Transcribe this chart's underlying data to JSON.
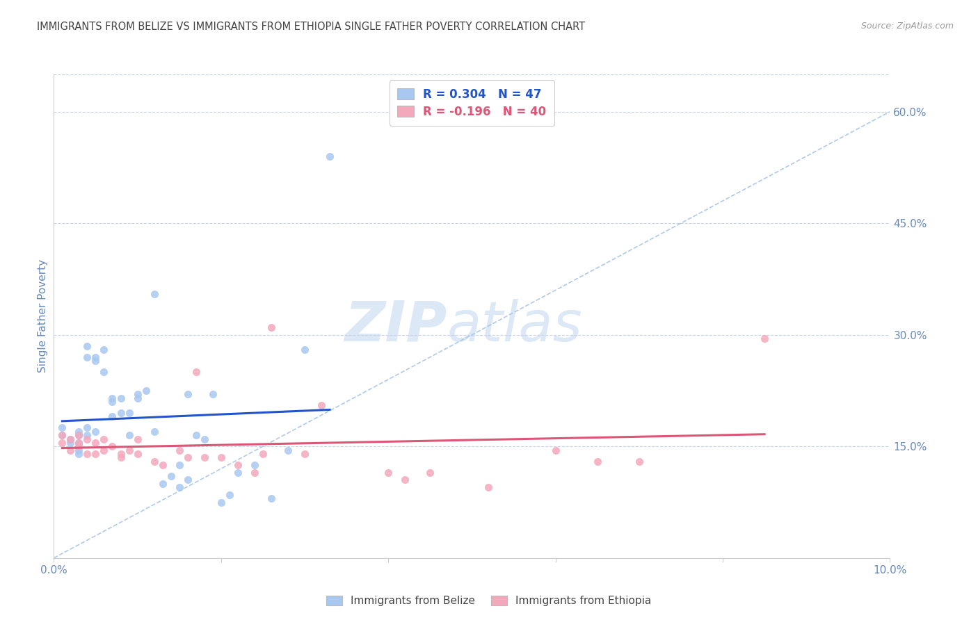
{
  "title": "IMMIGRANTS FROM BELIZE VS IMMIGRANTS FROM ETHIOPIA SINGLE FATHER POVERTY CORRELATION CHART",
  "source": "Source: ZipAtlas.com",
  "ylabel": "Single Father Poverty",
  "legend_belize": "Immigrants from Belize",
  "legend_ethiopia": "Immigrants from Ethiopia",
  "legend_r_belize": "0.304",
  "legend_n_belize": "47",
  "legend_r_ethiopia": "-0.196",
  "legend_n_ethiopia": "40",
  "xlim": [
    0.0,
    0.1
  ],
  "ylim": [
    0.0,
    0.65
  ],
  "yticks_right": [
    0.15,
    0.3,
    0.45,
    0.6
  ],
  "ytick_labels_right": [
    "15.0%",
    "30.0%",
    "45.0%",
    "60.0%"
  ],
  "color_belize": "#a8c8f0",
  "color_ethiopia": "#f4a8bc",
  "color_trend_belize": "#2255cc",
  "color_trend_ethiopia": "#dd5577",
  "color_diagonal": "#a8c4e8",
  "watermark_zip": "ZIP",
  "watermark_atlas": "atlas",
  "watermark_color": "#dce8f5",
  "belize_x": [
    0.001,
    0.001,
    0.002,
    0.002,
    0.003,
    0.003,
    0.003,
    0.003,
    0.003,
    0.004,
    0.004,
    0.004,
    0.004,
    0.005,
    0.005,
    0.005,
    0.006,
    0.006,
    0.007,
    0.007,
    0.007,
    0.008,
    0.008,
    0.009,
    0.009,
    0.01,
    0.01,
    0.011,
    0.012,
    0.012,
    0.013,
    0.014,
    0.015,
    0.015,
    0.016,
    0.016,
    0.017,
    0.018,
    0.019,
    0.02,
    0.021,
    0.022,
    0.024,
    0.026,
    0.028,
    0.03,
    0.033
  ],
  "belize_y": [
    0.165,
    0.175,
    0.155,
    0.16,
    0.165,
    0.155,
    0.17,
    0.145,
    0.14,
    0.175,
    0.27,
    0.285,
    0.165,
    0.27,
    0.265,
    0.17,
    0.28,
    0.25,
    0.21,
    0.215,
    0.19,
    0.215,
    0.195,
    0.195,
    0.165,
    0.215,
    0.22,
    0.225,
    0.355,
    0.17,
    0.1,
    0.11,
    0.095,
    0.125,
    0.105,
    0.22,
    0.165,
    0.16,
    0.22,
    0.075,
    0.085,
    0.115,
    0.125,
    0.08,
    0.145,
    0.28,
    0.54
  ],
  "ethiopia_x": [
    0.001,
    0.001,
    0.002,
    0.002,
    0.003,
    0.003,
    0.003,
    0.004,
    0.004,
    0.005,
    0.005,
    0.006,
    0.006,
    0.007,
    0.008,
    0.008,
    0.009,
    0.01,
    0.01,
    0.012,
    0.013,
    0.015,
    0.016,
    0.017,
    0.018,
    0.02,
    0.022,
    0.024,
    0.025,
    0.026,
    0.03,
    0.032,
    0.04,
    0.042,
    0.045,
    0.052,
    0.06,
    0.065,
    0.07,
    0.085
  ],
  "ethiopia_y": [
    0.165,
    0.155,
    0.16,
    0.145,
    0.155,
    0.15,
    0.165,
    0.16,
    0.14,
    0.155,
    0.14,
    0.16,
    0.145,
    0.15,
    0.135,
    0.14,
    0.145,
    0.14,
    0.16,
    0.13,
    0.125,
    0.145,
    0.135,
    0.25,
    0.135,
    0.135,
    0.125,
    0.115,
    0.14,
    0.31,
    0.14,
    0.205,
    0.115,
    0.105,
    0.115,
    0.095,
    0.145,
    0.13,
    0.13,
    0.295
  ],
  "background_color": "#ffffff",
  "grid_color": "#c8d4e8",
  "title_color": "#444444",
  "axis_label_color": "#6688bb",
  "tick_color": "#6688bb"
}
